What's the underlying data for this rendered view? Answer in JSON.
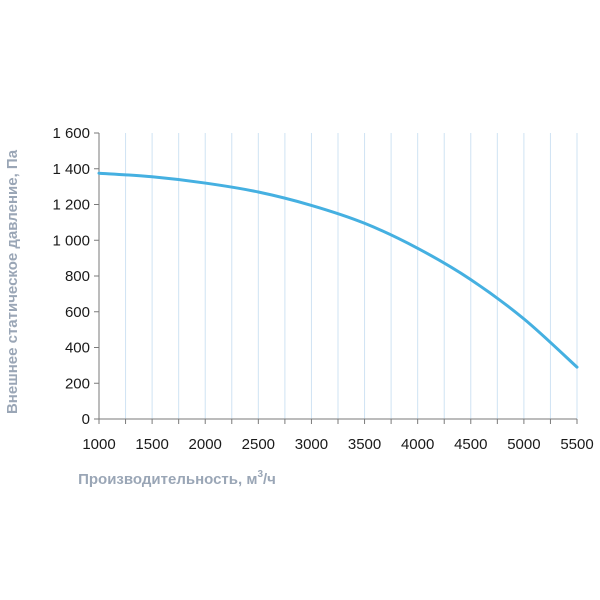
{
  "chart_data": {
    "type": "line",
    "title": "",
    "xlabel": "Производительность, м",
    "xlabel_sup": "3",
    "xlabel_suffix": "/ч",
    "ylabel": "Внешнее статическое давление, Па",
    "xlim": [
      1000,
      5500
    ],
    "ylim": [
      0,
      1600
    ],
    "x_major_ticks": [
      "1000",
      "1500",
      "2000",
      "2500",
      "3000",
      "3500",
      "4000",
      "4500",
      "5000",
      "5500"
    ],
    "y_ticks": [
      "0",
      "200",
      "400",
      "600",
      "800",
      "1 000",
      "1 200",
      "1 400",
      "1 600"
    ],
    "grid": true,
    "series_color": "#45b0e1",
    "series": [
      {
        "x": [
          1000,
          1500,
          2000,
          2500,
          3000,
          3500,
          4000,
          4500,
          5000,
          5500
        ],
        "y": [
          1375,
          1355,
          1320,
          1270,
          1195,
          1095,
          955,
          780,
          560,
          290
        ]
      }
    ]
  }
}
